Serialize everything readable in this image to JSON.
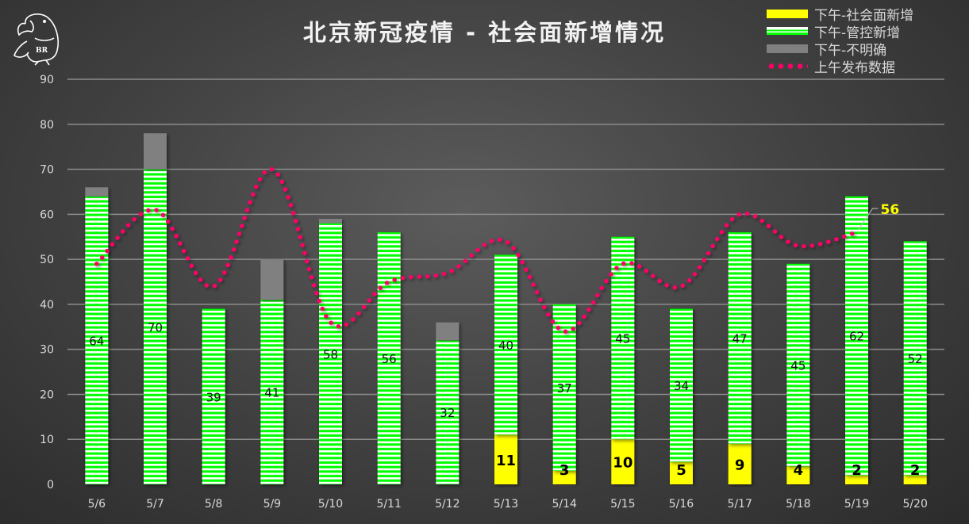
{
  "chart_data": {
    "type": "bar",
    "stacked": true,
    "title": "北京新冠疫情 - 社会面新增情况",
    "categories": [
      "5/6",
      "5/7",
      "5/8",
      "5/9",
      "5/10",
      "5/11",
      "5/12",
      "5/13",
      "5/14",
      "5/15",
      "5/16",
      "5/17",
      "5/18",
      "5/19",
      "5/20"
    ],
    "ylim": [
      0,
      90
    ],
    "yticks": [
      0,
      10,
      20,
      30,
      40,
      50,
      60,
      70,
      80,
      90
    ],
    "grid": true,
    "legend_position": "top-right",
    "series": [
      {
        "name": "下午-社会面新增",
        "kind": "bar",
        "color": "#ffff00",
        "values": [
          0,
          0,
          0,
          0,
          0,
          0,
          0,
          11,
          3,
          10,
          5,
          9,
          4,
          2,
          2
        ]
      },
      {
        "name": "下午-管控新增",
        "kind": "bar",
        "color": "#00ff00",
        "values": [
          64,
          70,
          39,
          41,
          58,
          56,
          32,
          40,
          37,
          45,
          34,
          47,
          45,
          62,
          52
        ]
      },
      {
        "name": "下午-不明确",
        "kind": "bar",
        "color": "#808080",
        "values": [
          2,
          8,
          0,
          9,
          1,
          0,
          4,
          0,
          0,
          0,
          0,
          0,
          0,
          0,
          0
        ]
      },
      {
        "name": "上午发布数据",
        "kind": "line",
        "color": "#ff0066",
        "values": [
          49,
          61,
          44,
          70,
          36,
          45,
          47,
          54,
          34,
          49,
          44,
          60,
          53,
          56,
          null
        ],
        "end_label": "56"
      }
    ]
  },
  "logo_text": "BR"
}
